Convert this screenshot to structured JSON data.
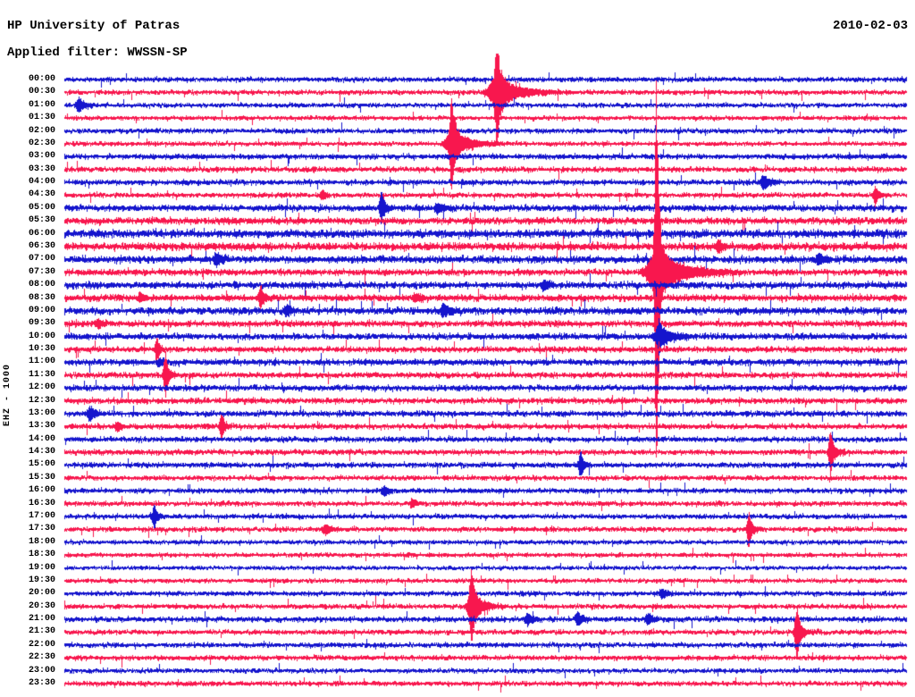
{
  "header": {
    "title": "HP University of Patras",
    "filter": "Applied filter: WWSSN-SP",
    "date": "2010-02-03"
  },
  "y_axis_label": "EHZ - 1000",
  "colors": {
    "trace_blue": "#1515cd",
    "trace_red": "#f8174e",
    "text": "#000000",
    "background": "#ffffff"
  },
  "chart_data": {
    "type": "helicorder",
    "title": "HP University of Patras seismogram, 2010-02-03, filter WWSSN-SP, channel EHZ, gain 1000",
    "minutes_per_line": 30,
    "line_order": "top to bottom, one trace per half hour, colors alternate blue/red",
    "rows": [
      {
        "label": "00:00",
        "color": "blue",
        "noise": 1.1
      },
      {
        "label": "00:30",
        "color": "red",
        "noise": 1.1
      },
      {
        "label": "01:00",
        "color": "blue",
        "noise": 1.0
      },
      {
        "label": "01:30",
        "color": "red",
        "noise": 1.0
      },
      {
        "label": "02:00",
        "color": "blue",
        "noise": 1.1
      },
      {
        "label": "02:30",
        "color": "red",
        "noise": 1.0
      },
      {
        "label": "03:00",
        "color": "blue",
        "noise": 1.2
      },
      {
        "label": "03:30",
        "color": "red",
        "noise": 1.2
      },
      {
        "label": "04:00",
        "color": "blue",
        "noise": 1.2
      },
      {
        "label": "04:30",
        "color": "red",
        "noise": 1.1
      },
      {
        "label": "05:00",
        "color": "blue",
        "noise": 1.4
      },
      {
        "label": "05:30",
        "color": "red",
        "noise": 1.5
      },
      {
        "label": "06:00",
        "color": "blue",
        "noise": 1.8
      },
      {
        "label": "06:30",
        "color": "red",
        "noise": 1.7
      },
      {
        "label": "07:00",
        "color": "blue",
        "noise": 1.6
      },
      {
        "label": "07:30",
        "color": "red",
        "noise": 1.4
      },
      {
        "label": "08:00",
        "color": "blue",
        "noise": 1.5
      },
      {
        "label": "08:30",
        "color": "red",
        "noise": 1.5
      },
      {
        "label": "09:00",
        "color": "blue",
        "noise": 1.6
      },
      {
        "label": "09:30",
        "color": "red",
        "noise": 1.4
      },
      {
        "label": "10:00",
        "color": "blue",
        "noise": 1.4
      },
      {
        "label": "10:30",
        "color": "red",
        "noise": 1.3
      },
      {
        "label": "11:00",
        "color": "blue",
        "noise": 1.4
      },
      {
        "label": "11:30",
        "color": "red",
        "noise": 1.3
      },
      {
        "label": "12:00",
        "color": "blue",
        "noise": 1.3
      },
      {
        "label": "12:30",
        "color": "red",
        "noise": 1.3
      },
      {
        "label": "13:00",
        "color": "blue",
        "noise": 1.3
      },
      {
        "label": "13:30",
        "color": "red",
        "noise": 1.2
      },
      {
        "label": "14:00",
        "color": "blue",
        "noise": 1.2
      },
      {
        "label": "14:30",
        "color": "red",
        "noise": 1.2
      },
      {
        "label": "15:00",
        "color": "blue",
        "noise": 1.2
      },
      {
        "label": "15:30",
        "color": "red",
        "noise": 1.1
      },
      {
        "label": "16:00",
        "color": "blue",
        "noise": 1.1
      },
      {
        "label": "16:30",
        "color": "red",
        "noise": 1.1
      },
      {
        "label": "17:00",
        "color": "blue",
        "noise": 1.1
      },
      {
        "label": "17:30",
        "color": "red",
        "noise": 1.1
      },
      {
        "label": "18:00",
        "color": "blue",
        "noise": 1.0
      },
      {
        "label": "18:30",
        "color": "red",
        "noise": 1.0
      },
      {
        "label": "19:00",
        "color": "blue",
        "noise": 0.9
      },
      {
        "label": "19:30",
        "color": "red",
        "noise": 1.0
      },
      {
        "label": "20:00",
        "color": "blue",
        "noise": 1.1
      },
      {
        "label": "20:30",
        "color": "red",
        "noise": 1.1
      },
      {
        "label": "21:00",
        "color": "blue",
        "noise": 1.2
      },
      {
        "label": "21:30",
        "color": "red",
        "noise": 1.1
      },
      {
        "label": "22:00",
        "color": "blue",
        "noise": 1.1
      },
      {
        "label": "22:30",
        "color": "red",
        "noise": 1.1
      },
      {
        "label": "23:00",
        "color": "blue",
        "noise": 1.0
      },
      {
        "label": "23:30",
        "color": "red",
        "noise": 1.1
      }
    ],
    "events": [
      {
        "time": "00:30",
        "minute": 15.4,
        "spike_amp": 40,
        "spike_coda": 4,
        "blob_amp": 16,
        "blob_coda": 22
      },
      {
        "time": "01:00",
        "minute": 0.5,
        "spike_amp": 0,
        "spike_coda": 0,
        "blob_amp": 8,
        "blob_coda": 6
      },
      {
        "time": "02:30",
        "minute": 13.8,
        "spike_amp": 48,
        "spike_coda": 3,
        "blob_amp": 13,
        "blob_coda": 18
      },
      {
        "time": "04:00",
        "minute": 24.9,
        "spike_amp": 0,
        "spike_coda": 0,
        "blob_amp": 7,
        "blob_coda": 7
      },
      {
        "time": "04:30",
        "minute": 9.2,
        "spike_amp": 0,
        "spike_coda": 0,
        "blob_amp": 4,
        "blob_coda": 4
      },
      {
        "time": "04:30",
        "minute": 28.9,
        "spike_amp": 6,
        "spike_coda": 2,
        "blob_amp": 4,
        "blob_coda": 5
      },
      {
        "time": "05:00",
        "minute": 11.3,
        "spike_amp": 12,
        "spike_coda": 2,
        "blob_amp": 5,
        "blob_coda": 6
      },
      {
        "time": "05:00",
        "minute": 13.3,
        "spike_amp": 0,
        "spike_coda": 0,
        "blob_amp": 4,
        "blob_coda": 8
      },
      {
        "time": "06:30",
        "minute": 23.3,
        "spike_amp": 0,
        "spike_coda": 0,
        "blob_amp": 6,
        "blob_coda": 5
      },
      {
        "time": "07:00",
        "minute": 5.4,
        "spike_amp": 0,
        "spike_coda": 0,
        "blob_amp": 6,
        "blob_coda": 6
      },
      {
        "time": "07:00",
        "minute": 26.9,
        "spike_amp": 0,
        "spike_coda": 0,
        "blob_amp": 6,
        "blob_coda": 5
      },
      {
        "time": "07:30",
        "minute": 21.1,
        "spike_amp": 200,
        "spike_coda": 2.5,
        "blob_amp": 22,
        "blob_coda": 26
      },
      {
        "time": "08:00",
        "minute": 17.1,
        "spike_amp": 0,
        "spike_coda": 0,
        "blob_amp": 5,
        "blob_coda": 5
      },
      {
        "time": "08:30",
        "minute": 2.7,
        "spike_amp": 0,
        "spike_coda": 0,
        "blob_amp": 5,
        "blob_coda": 4
      },
      {
        "time": "08:30",
        "minute": 7.0,
        "spike_amp": 8,
        "spike_coda": 2,
        "blob_amp": 4,
        "blob_coda": 6
      },
      {
        "time": "08:30",
        "minute": 12.5,
        "spike_amp": 0,
        "spike_coda": 0,
        "blob_amp": 4,
        "blob_coda": 5
      },
      {
        "time": "09:00",
        "minute": 7.9,
        "spike_amp": 0,
        "spike_coda": 0,
        "blob_amp": 5,
        "blob_coda": 5
      },
      {
        "time": "09:00",
        "minute": 13.5,
        "spike_amp": 0,
        "spike_coda": 0,
        "blob_amp": 7,
        "blob_coda": 7
      },
      {
        "time": "09:30",
        "minute": 1.2,
        "spike_amp": 0,
        "spike_coda": 0,
        "blob_amp": 4,
        "blob_coda": 5
      },
      {
        "time": "10:00",
        "minute": 21.2,
        "spike_amp": 10,
        "spike_coda": 2,
        "blob_amp": 9,
        "blob_coda": 14
      },
      {
        "time": "10:30",
        "minute": 3.3,
        "spike_amp": 8,
        "spike_coda": 2,
        "blob_amp": 4,
        "blob_coda": 4
      },
      {
        "time": "11:00",
        "minute": 3.4,
        "spike_amp": 0,
        "spike_coda": 0,
        "blob_amp": 4,
        "blob_coda": 4
      },
      {
        "time": "11:30",
        "minute": 3.6,
        "spike_amp": 18,
        "spike_coda": 2,
        "blob_amp": 5,
        "blob_coda": 6
      },
      {
        "time": "13:00",
        "minute": 0.9,
        "spike_amp": 0,
        "spike_coda": 0,
        "blob_amp": 7,
        "blob_coda": 5
      },
      {
        "time": "13:30",
        "minute": 1.9,
        "spike_amp": 0,
        "spike_coda": 0,
        "blob_amp": 5,
        "blob_coda": 3
      },
      {
        "time": "13:30",
        "minute": 5.6,
        "spike_amp": 9,
        "spike_coda": 2,
        "blob_amp": 5,
        "blob_coda": 5
      },
      {
        "time": "14:30",
        "minute": 27.3,
        "spike_amp": 18,
        "spike_coda": 2.5,
        "blob_amp": 6,
        "blob_coda": 7
      },
      {
        "time": "15:00",
        "minute": 18.4,
        "spike_amp": 9,
        "spike_coda": 2,
        "blob_amp": 5,
        "blob_coda": 5
      },
      {
        "time": "16:00",
        "minute": 11.4,
        "spike_amp": 0,
        "spike_coda": 0,
        "blob_amp": 5,
        "blob_coda": 4
      },
      {
        "time": "16:30",
        "minute": 12.4,
        "spike_amp": 0,
        "spike_coda": 0,
        "blob_amp": 4,
        "blob_coda": 4
      },
      {
        "time": "17:00",
        "minute": 3.2,
        "spike_amp": 7,
        "spike_coda": 2,
        "blob_amp": 5,
        "blob_coda": 4
      },
      {
        "time": "17:30",
        "minute": 9.3,
        "spike_amp": 0,
        "spike_coda": 0,
        "blob_amp": 5,
        "blob_coda": 6
      },
      {
        "time": "17:30",
        "minute": 24.4,
        "spike_amp": 13,
        "spike_coda": 2,
        "blob_amp": 6,
        "blob_coda": 6
      },
      {
        "time": "20:00",
        "minute": 21.3,
        "spike_amp": 0,
        "spike_coda": 0,
        "blob_amp": 5,
        "blob_coda": 5
      },
      {
        "time": "20:30",
        "minute": 14.5,
        "spike_amp": 26,
        "spike_coda": 3.5,
        "blob_amp": 12,
        "blob_coda": 12
      },
      {
        "time": "21:00",
        "minute": 16.5,
        "spike_amp": 0,
        "spike_coda": 0,
        "blob_amp": 6,
        "blob_coda": 5
      },
      {
        "time": "21:00",
        "minute": 18.3,
        "spike_amp": 0,
        "spike_coda": 0,
        "blob_amp": 7,
        "blob_coda": 5
      },
      {
        "time": "21:00",
        "minute": 20.8,
        "spike_amp": 0,
        "spike_coda": 0,
        "blob_amp": 5,
        "blob_coda": 5
      },
      {
        "time": "21:30",
        "minute": 26.1,
        "spike_amp": 23,
        "spike_coda": 2.5,
        "blob_amp": 7,
        "blob_coda": 8
      }
    ]
  }
}
